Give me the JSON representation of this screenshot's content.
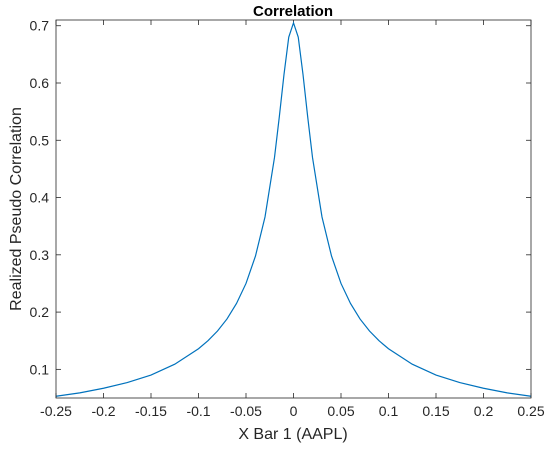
{
  "chart_data": {
    "type": "line",
    "title": "Correlation",
    "xlabel": "X Bar 1 (AAPL)",
    "ylabel": "Realized Pseudo Correlation",
    "xlim": [
      -0.25,
      0.25
    ],
    "ylim": [
      0.05,
      0.71
    ],
    "x_ticks": [
      "-0.25",
      "-0.2",
      "-0.15",
      "-0.1",
      "-0.05",
      "0",
      "0.05",
      "0.1",
      "0.15",
      "0.2",
      "0.25"
    ],
    "x_tick_values": [
      -0.25,
      -0.2,
      -0.15,
      -0.1,
      -0.05,
      0,
      0.05,
      0.1,
      0.15,
      0.2,
      0.25
    ],
    "y_ticks": [
      "0.1",
      "0.2",
      "0.3",
      "0.4",
      "0.5",
      "0.6",
      "0.7"
    ],
    "y_tick_values": [
      0.1,
      0.2,
      0.3,
      0.4,
      0.5,
      0.6,
      0.7
    ],
    "grid": false,
    "series": [
      {
        "color": "#0072BD",
        "x": [
          -0.25,
          -0.225,
          -0.2,
          -0.175,
          -0.15,
          -0.125,
          -0.1,
          -0.09,
          -0.08,
          -0.07,
          -0.06,
          -0.05,
          -0.04,
          -0.03,
          -0.02,
          -0.015,
          -0.01,
          -0.005,
          0,
          0.005,
          0.01,
          0.015,
          0.02,
          0.03,
          0.04,
          0.05,
          0.06,
          0.07,
          0.08,
          0.09,
          0.1,
          0.125,
          0.15,
          0.175,
          0.2,
          0.225,
          0.25
        ],
        "y": [
          0.053,
          0.059,
          0.067,
          0.077,
          0.09,
          0.109,
          0.136,
          0.15,
          0.167,
          0.188,
          0.215,
          0.25,
          0.298,
          0.366,
          0.47,
          0.54,
          0.615,
          0.68,
          0.705,
          0.68,
          0.615,
          0.54,
          0.47,
          0.366,
          0.298,
          0.25,
          0.215,
          0.188,
          0.167,
          0.15,
          0.136,
          0.109,
          0.09,
          0.077,
          0.067,
          0.059,
          0.053
        ]
      }
    ]
  }
}
